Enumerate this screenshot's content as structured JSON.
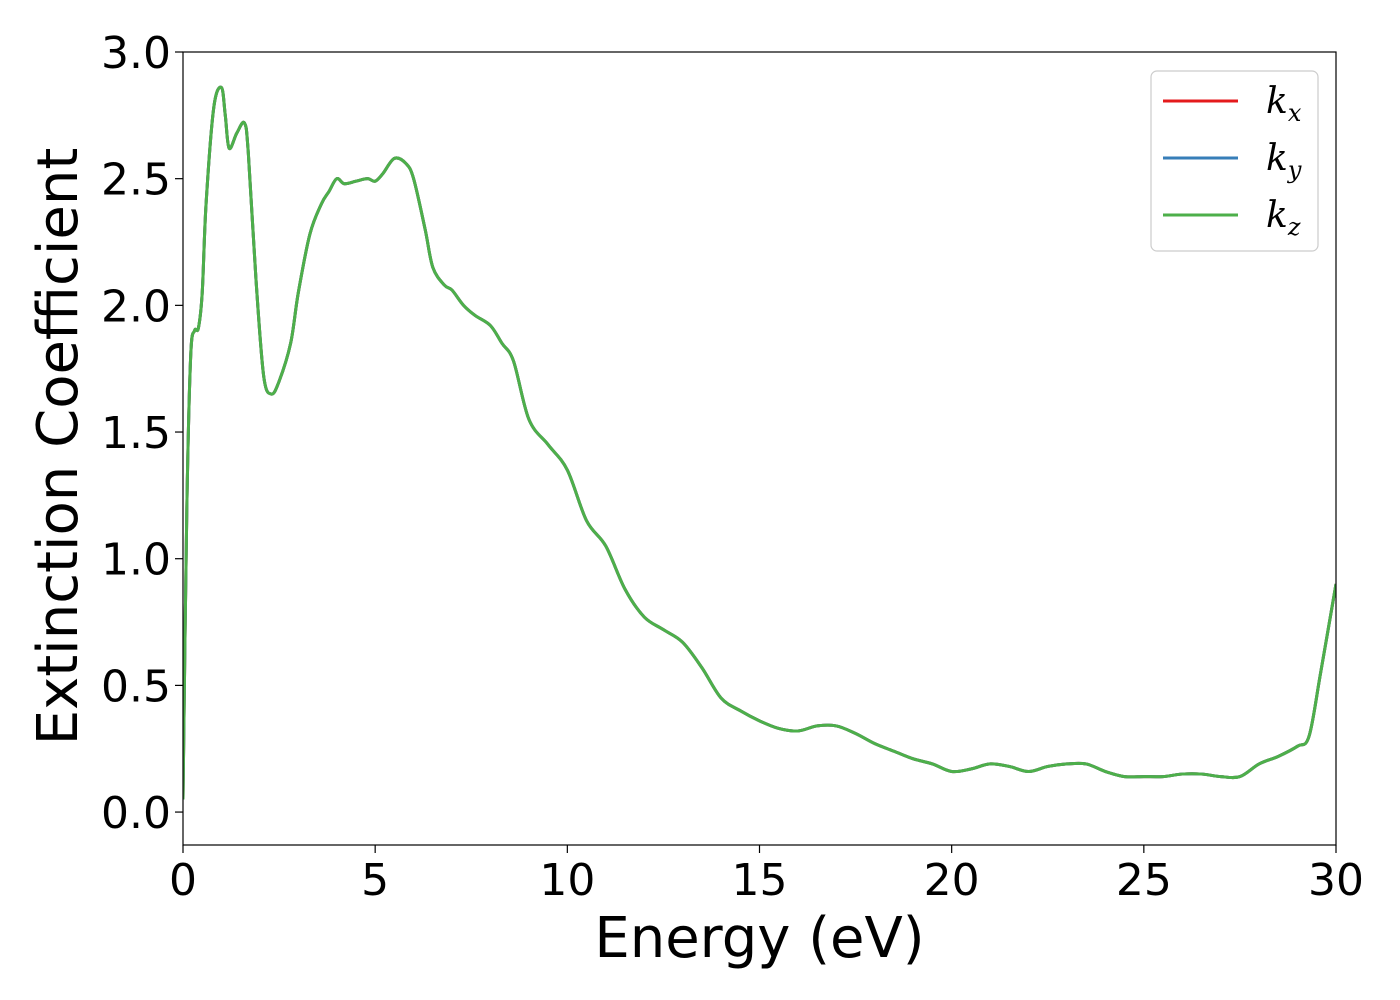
{
  "chart_data": {
    "type": "line",
    "xlabel": "Energy (eV)",
    "ylabel": "Extinction Coefficient",
    "xlim": [
      0,
      30
    ],
    "ylim": [
      -0.13,
      3.0
    ],
    "xticks": [
      0,
      5,
      10,
      15,
      20,
      25,
      30
    ],
    "xtick_labels": [
      "0",
      "5",
      "10",
      "15",
      "20",
      "25",
      "30"
    ],
    "yticks": [
      0.0,
      0.5,
      1.0,
      1.5,
      2.0,
      2.5,
      3.0
    ],
    "ytick_labels": [
      "0.0",
      "0.5",
      "1.0",
      "1.5",
      "2.0",
      "2.5",
      "3.0"
    ],
    "grid": false,
    "legend_position": "top-right",
    "x": [
      0.0,
      0.1,
      0.2,
      0.3,
      0.4,
      0.5,
      0.6,
      0.8,
      1.0,
      1.1,
      1.2,
      1.4,
      1.6,
      1.7,
      1.9,
      2.1,
      2.3,
      2.5,
      2.8,
      3.0,
      3.3,
      3.6,
      3.8,
      4.0,
      4.2,
      4.5,
      4.8,
      5.0,
      5.2,
      5.5,
      5.8,
      6.0,
      6.3,
      6.5,
      6.8,
      7.0,
      7.3,
      7.6,
      8.0,
      8.3,
      8.6,
      9.0,
      9.5,
      10.0,
      10.5,
      11.0,
      11.5,
      12.0,
      12.5,
      13.0,
      13.5,
      14.0,
      14.5,
      15.0,
      15.5,
      16.0,
      16.5,
      17.0,
      17.5,
      18.0,
      18.5,
      19.0,
      19.5,
      20.0,
      20.5,
      21.0,
      21.5,
      22.0,
      22.5,
      23.0,
      23.5,
      24.0,
      24.5,
      25.0,
      25.5,
      26.0,
      26.5,
      27.0,
      27.5,
      28.0,
      28.5,
      29.0,
      29.3,
      29.6,
      30.0
    ],
    "series": [
      {
        "name": "k_x",
        "label_base": "k",
        "label_sub": "x",
        "color": "#e41a1c",
        "values": [
          0.05,
          1.2,
          1.8,
          1.9,
          1.91,
          2.05,
          2.4,
          2.78,
          2.86,
          2.75,
          2.62,
          2.68,
          2.72,
          2.6,
          2.1,
          1.72,
          1.65,
          1.7,
          1.85,
          2.05,
          2.28,
          2.4,
          2.45,
          2.5,
          2.48,
          2.49,
          2.5,
          2.49,
          2.52,
          2.58,
          2.56,
          2.5,
          2.3,
          2.15,
          2.08,
          2.06,
          2.0,
          1.96,
          1.92,
          1.85,
          1.78,
          1.55,
          1.45,
          1.35,
          1.15,
          1.05,
          0.88,
          0.77,
          0.72,
          0.67,
          0.57,
          0.45,
          0.4,
          0.36,
          0.33,
          0.32,
          0.34,
          0.34,
          0.31,
          0.27,
          0.24,
          0.21,
          0.19,
          0.16,
          0.17,
          0.19,
          0.18,
          0.16,
          0.18,
          0.19,
          0.19,
          0.16,
          0.14,
          0.14,
          0.14,
          0.15,
          0.15,
          0.14,
          0.14,
          0.19,
          0.22,
          0.26,
          0.3,
          0.55,
          0.9
        ]
      },
      {
        "name": "k_y",
        "label_base": "k",
        "label_sub": "y",
        "color": "#377eb8",
        "values": [
          0.05,
          1.2,
          1.8,
          1.9,
          1.91,
          2.05,
          2.4,
          2.78,
          2.86,
          2.75,
          2.62,
          2.68,
          2.72,
          2.6,
          2.1,
          1.72,
          1.65,
          1.7,
          1.85,
          2.05,
          2.28,
          2.4,
          2.45,
          2.5,
          2.48,
          2.49,
          2.5,
          2.49,
          2.52,
          2.58,
          2.56,
          2.5,
          2.3,
          2.15,
          2.08,
          2.06,
          2.0,
          1.96,
          1.92,
          1.85,
          1.78,
          1.55,
          1.45,
          1.35,
          1.15,
          1.05,
          0.88,
          0.77,
          0.72,
          0.67,
          0.57,
          0.45,
          0.4,
          0.36,
          0.33,
          0.32,
          0.34,
          0.34,
          0.31,
          0.27,
          0.24,
          0.21,
          0.19,
          0.16,
          0.17,
          0.19,
          0.18,
          0.16,
          0.18,
          0.19,
          0.19,
          0.16,
          0.14,
          0.14,
          0.14,
          0.15,
          0.15,
          0.14,
          0.14,
          0.19,
          0.22,
          0.26,
          0.3,
          0.55,
          0.9
        ]
      },
      {
        "name": "k_z",
        "label_base": "k",
        "label_sub": "z",
        "color": "#4daf4a",
        "values": [
          0.05,
          1.2,
          1.8,
          1.9,
          1.91,
          2.05,
          2.4,
          2.78,
          2.86,
          2.75,
          2.62,
          2.68,
          2.72,
          2.6,
          2.1,
          1.72,
          1.65,
          1.7,
          1.85,
          2.05,
          2.28,
          2.4,
          2.45,
          2.5,
          2.48,
          2.49,
          2.5,
          2.49,
          2.52,
          2.58,
          2.56,
          2.5,
          2.3,
          2.15,
          2.08,
          2.06,
          2.0,
          1.96,
          1.92,
          1.85,
          1.78,
          1.55,
          1.45,
          1.35,
          1.15,
          1.05,
          0.88,
          0.77,
          0.72,
          0.67,
          0.57,
          0.45,
          0.4,
          0.36,
          0.33,
          0.32,
          0.34,
          0.34,
          0.31,
          0.27,
          0.24,
          0.21,
          0.19,
          0.16,
          0.17,
          0.19,
          0.18,
          0.16,
          0.18,
          0.19,
          0.19,
          0.16,
          0.14,
          0.14,
          0.14,
          0.15,
          0.15,
          0.14,
          0.14,
          0.19,
          0.22,
          0.26,
          0.3,
          0.55,
          0.9
        ]
      }
    ]
  }
}
